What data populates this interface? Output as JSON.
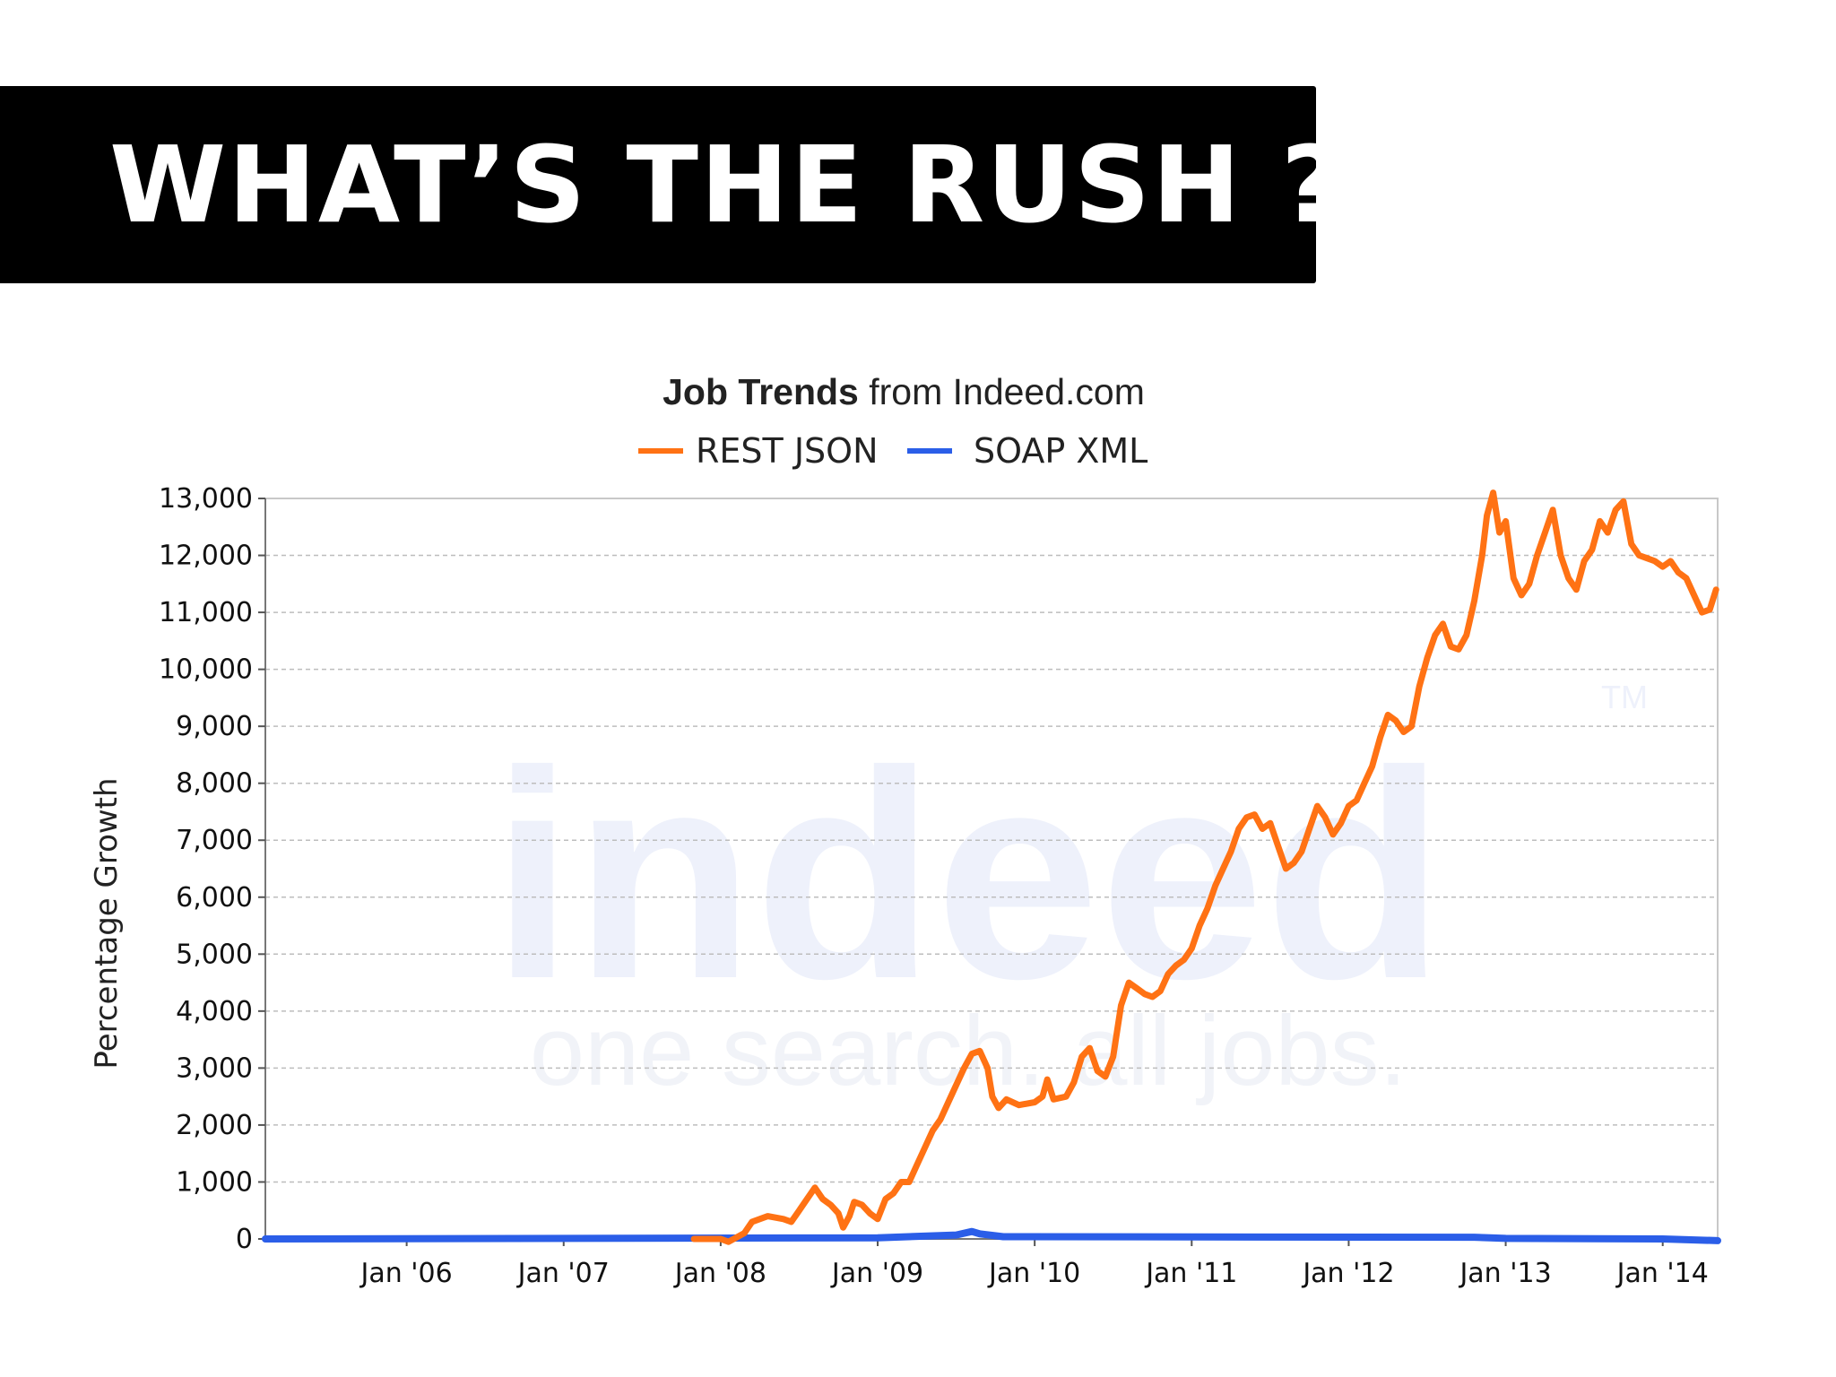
{
  "slide": {
    "title": "WHAT’S THE RUSH ?"
  },
  "chart_data": {
    "type": "line",
    "title_bold": "Job Trends",
    "title_rest": " from Indeed.com",
    "ylabel": "Percentage Growth",
    "xlabel": "",
    "grid": true,
    "legend_position": "top",
    "watermark": {
      "word": "indeed",
      "tagline": "one search. all jobs.",
      "tm": "TM"
    },
    "xlim": [
      2005.1,
      2014.35
    ],
    "ylim": [
      0,
      13000
    ],
    "x_ticks": [
      {
        "value": 2006,
        "label": "Jan '06"
      },
      {
        "value": 2007,
        "label": "Jan '07"
      },
      {
        "value": 2008,
        "label": "Jan '08"
      },
      {
        "value": 2009,
        "label": "Jan '09"
      },
      {
        "value": 2010,
        "label": "Jan '10"
      },
      {
        "value": 2011,
        "label": "Jan '11"
      },
      {
        "value": 2012,
        "label": "Jan '12"
      },
      {
        "value": 2013,
        "label": "Jan '13"
      },
      {
        "value": 2014,
        "label": "Jan '14"
      }
    ],
    "y_ticks": [
      {
        "value": 0,
        "label": "0"
      },
      {
        "value": 1000,
        "label": "1,000"
      },
      {
        "value": 2000,
        "label": "2,000"
      },
      {
        "value": 3000,
        "label": "3,000"
      },
      {
        "value": 4000,
        "label": "4,000"
      },
      {
        "value": 5000,
        "label": "5,000"
      },
      {
        "value": 6000,
        "label": "6,000"
      },
      {
        "value": 7000,
        "label": "7,000"
      },
      {
        "value": 8000,
        "label": "8,000"
      },
      {
        "value": 9000,
        "label": "9,000"
      },
      {
        "value": 10000,
        "label": "10,000"
      },
      {
        "value": 11000,
        "label": "11,000"
      },
      {
        "value": 12000,
        "label": "12,000"
      },
      {
        "value": 13000,
        "label": "13,000"
      }
    ],
    "series": [
      {
        "name": "REST JSON",
        "color": "#ff7214",
        "points": [
          [
            2007.83,
            0
          ],
          [
            2008.0,
            0
          ],
          [
            2008.05,
            -50
          ],
          [
            2008.15,
            100
          ],
          [
            2008.2,
            300
          ],
          [
            2008.3,
            400
          ],
          [
            2008.4,
            350
          ],
          [
            2008.45,
            300
          ],
          [
            2008.5,
            500
          ],
          [
            2008.55,
            700
          ],
          [
            2008.6,
            900
          ],
          [
            2008.65,
            700
          ],
          [
            2008.7,
            600
          ],
          [
            2008.75,
            450
          ],
          [
            2008.78,
            200
          ],
          [
            2008.82,
            400
          ],
          [
            2008.85,
            650
          ],
          [
            2008.9,
            600
          ],
          [
            2008.95,
            450
          ],
          [
            2009.0,
            350
          ],
          [
            2009.05,
            700
          ],
          [
            2009.1,
            800
          ],
          [
            2009.15,
            1000
          ],
          [
            2009.2,
            1000
          ],
          [
            2009.25,
            1300
          ],
          [
            2009.3,
            1600
          ],
          [
            2009.35,
            1900
          ],
          [
            2009.4,
            2100
          ],
          [
            2009.45,
            2400
          ],
          [
            2009.5,
            2700
          ],
          [
            2009.55,
            3000
          ],
          [
            2009.6,
            3250
          ],
          [
            2009.65,
            3300
          ],
          [
            2009.7,
            3000
          ],
          [
            2009.73,
            2500
          ],
          [
            2009.77,
            2300
          ],
          [
            2009.82,
            2450
          ],
          [
            2009.9,
            2350
          ],
          [
            2010.0,
            2400
          ],
          [
            2010.05,
            2500
          ],
          [
            2010.08,
            2800
          ],
          [
            2010.12,
            2450
          ],
          [
            2010.2,
            2500
          ],
          [
            2010.25,
            2750
          ],
          [
            2010.3,
            3200
          ],
          [
            2010.35,
            3350
          ],
          [
            2010.4,
            2950
          ],
          [
            2010.45,
            2850
          ],
          [
            2010.5,
            3200
          ],
          [
            2010.55,
            4100
          ],
          [
            2010.6,
            4500
          ],
          [
            2010.65,
            4400
          ],
          [
            2010.7,
            4300
          ],
          [
            2010.75,
            4250
          ],
          [
            2010.8,
            4350
          ],
          [
            2010.85,
            4650
          ],
          [
            2010.9,
            4800
          ],
          [
            2010.95,
            4900
          ],
          [
            2011.0,
            5100
          ],
          [
            2011.05,
            5500
          ],
          [
            2011.1,
            5800
          ],
          [
            2011.15,
            6200
          ],
          [
            2011.2,
            6500
          ],
          [
            2011.25,
            6800
          ],
          [
            2011.3,
            7200
          ],
          [
            2011.35,
            7400
          ],
          [
            2011.4,
            7450
          ],
          [
            2011.45,
            7200
          ],
          [
            2011.5,
            7300
          ],
          [
            2011.55,
            6900
          ],
          [
            2011.6,
            6500
          ],
          [
            2011.65,
            6600
          ],
          [
            2011.7,
            6800
          ],
          [
            2011.75,
            7200
          ],
          [
            2011.8,
            7600
          ],
          [
            2011.85,
            7400
          ],
          [
            2011.9,
            7100
          ],
          [
            2011.95,
            7300
          ],
          [
            2012.0,
            7600
          ],
          [
            2012.05,
            7700
          ],
          [
            2012.1,
            8000
          ],
          [
            2012.15,
            8300
          ],
          [
            2012.2,
            8800
          ],
          [
            2012.25,
            9200
          ],
          [
            2012.3,
            9100
          ],
          [
            2012.35,
            8900
          ],
          [
            2012.4,
            9000
          ],
          [
            2012.45,
            9700
          ],
          [
            2012.5,
            10200
          ],
          [
            2012.55,
            10600
          ],
          [
            2012.6,
            10800
          ],
          [
            2012.65,
            10400
          ],
          [
            2012.7,
            10350
          ],
          [
            2012.75,
            10600
          ],
          [
            2012.8,
            11200
          ],
          [
            2012.85,
            12000
          ],
          [
            2012.88,
            12700
          ],
          [
            2012.92,
            13100
          ],
          [
            2012.96,
            12400
          ],
          [
            2013.0,
            12600
          ],
          [
            2013.05,
            11600
          ],
          [
            2013.1,
            11300
          ],
          [
            2013.15,
            11500
          ],
          [
            2013.2,
            12000
          ],
          [
            2013.25,
            12400
          ],
          [
            2013.3,
            12800
          ],
          [
            2013.35,
            12000
          ],
          [
            2013.4,
            11600
          ],
          [
            2013.45,
            11400
          ],
          [
            2013.5,
            11900
          ],
          [
            2013.55,
            12100
          ],
          [
            2013.6,
            12600
          ],
          [
            2013.65,
            12400
          ],
          [
            2013.7,
            12800
          ],
          [
            2013.75,
            12950
          ],
          [
            2013.8,
            12200
          ],
          [
            2013.85,
            12000
          ],
          [
            2013.9,
            11950
          ],
          [
            2013.95,
            11900
          ],
          [
            2014.0,
            11800
          ],
          [
            2014.05,
            11900
          ],
          [
            2014.1,
            11700
          ],
          [
            2014.15,
            11600
          ],
          [
            2014.2,
            11300
          ],
          [
            2014.25,
            11000
          ],
          [
            2014.3,
            11050
          ],
          [
            2014.34,
            11400
          ]
        ]
      },
      {
        "name": "SOAP XML",
        "color": "#2b5ee8",
        "points": [
          [
            2005.1,
            0
          ],
          [
            2009.0,
            20
          ],
          [
            2009.5,
            70
          ],
          [
            2009.55,
            100
          ],
          [
            2009.6,
            130
          ],
          [
            2009.65,
            90
          ],
          [
            2009.8,
            40
          ],
          [
            2012.8,
            30
          ],
          [
            2012.9,
            20
          ],
          [
            2013.0,
            10
          ],
          [
            2014.0,
            0
          ],
          [
            2014.35,
            -30
          ]
        ]
      }
    ]
  }
}
